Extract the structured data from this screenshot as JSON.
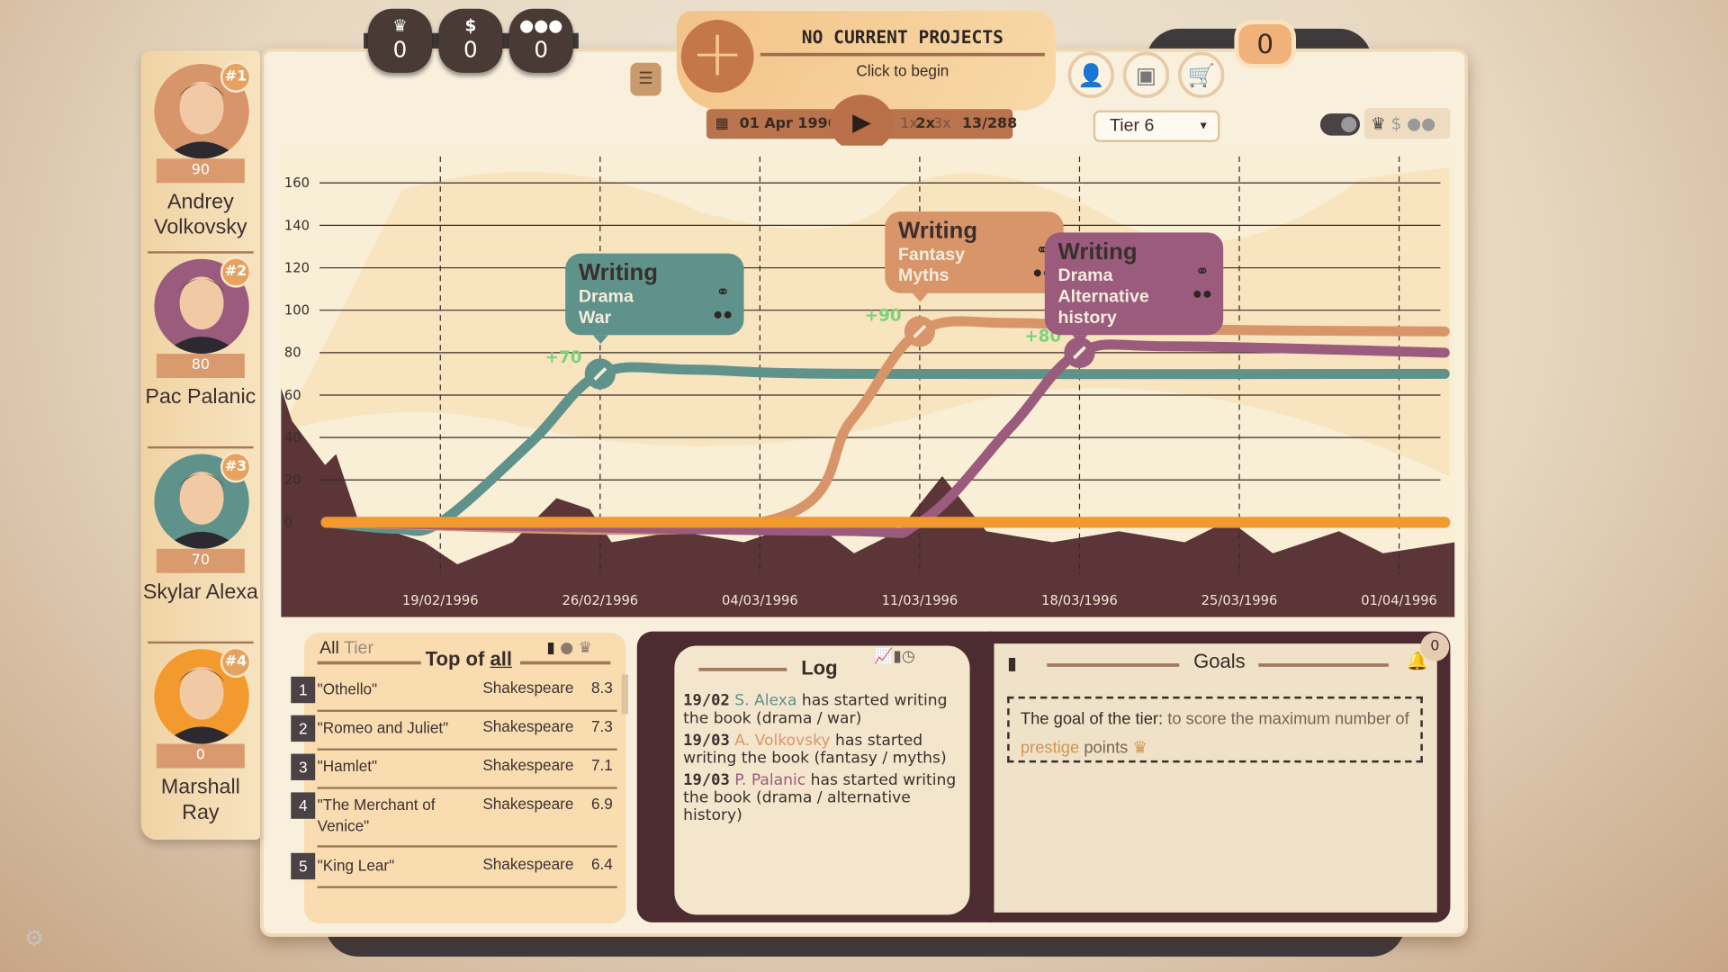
{
  "resources": [
    {
      "icon": "crown-icon",
      "glyph": "♛",
      "value": "0"
    },
    {
      "icon": "dollar-icon",
      "glyph": "$",
      "value": "0"
    },
    {
      "icon": "group-icon",
      "glyph": "👥",
      "value": "0"
    }
  ],
  "project": {
    "title": "NO CURRENT PROJECTS",
    "subtitle": "Click to begin"
  },
  "time": {
    "date": "01 Apr 1996",
    "speeds": [
      "1x",
      "2x",
      "3x"
    ],
    "active_speed": "2x",
    "progress": "13/288"
  },
  "tier_select": "Tier 6",
  "coins": "0",
  "characters": [
    {
      "rank": "#1",
      "score": "90",
      "name": "Andrey Volkovsky",
      "color": "#d9956a"
    },
    {
      "rank": "#2",
      "score": "80",
      "name": "Pac Palanic",
      "color": "#9a5b7d"
    },
    {
      "rank": "#3",
      "score": "70",
      "name": "Skylar Alexa",
      "color": "#5f928b"
    },
    {
      "rank": "#4",
      "score": "0",
      "name": "Marshall Ray",
      "color": "#f29a2e"
    }
  ],
  "chart_data": {
    "type": "line",
    "ylim": [
      0,
      160
    ],
    "yticks": [
      0,
      20,
      40,
      60,
      80,
      100,
      120,
      140,
      160
    ],
    "xlim": [
      "14/02/1996",
      "03/04/1996"
    ],
    "xticks": [
      "19/02/1996",
      "26/02/1996",
      "04/03/1996",
      "11/03/1996",
      "18/03/1996",
      "25/03/1996",
      "01/04/1996"
    ],
    "grid": true,
    "series": [
      {
        "color": "#5f928b",
        "points": [
          [
            "14/02/1996",
            0
          ],
          [
            "17/02/1996",
            -3
          ],
          [
            "19/02/1996",
            0
          ],
          [
            "23/02/1996",
            38
          ],
          [
            "26/02/1996",
            70
          ],
          [
            "01/03/1996",
            72
          ],
          [
            "08/03/1996",
            70
          ],
          [
            "03/04/1996",
            70
          ]
        ]
      },
      {
        "color": "#d9956a",
        "points": [
          [
            "14/02/1996",
            0
          ],
          [
            "04/03/1996",
            0
          ],
          [
            "08/03/1996",
            48
          ],
          [
            "11/03/1996",
            90
          ],
          [
            "15/03/1996",
            94
          ],
          [
            "22/03/1996",
            91
          ],
          [
            "03/04/1996",
            90
          ]
        ]
      },
      {
        "color": "#9a5b7d",
        "points": [
          [
            "14/02/1996",
            0
          ],
          [
            "07/03/1996",
            -4
          ],
          [
            "11/03/1996",
            0
          ],
          [
            "15/03/1996",
            45
          ],
          [
            "18/03/1996",
            80
          ],
          [
            "22/03/1996",
            83
          ],
          [
            "03/04/1996",
            80
          ]
        ]
      },
      {
        "color": "#f29a2e",
        "points": [
          [
            "14/02/1996",
            0
          ],
          [
            "03/04/1996",
            0
          ]
        ]
      }
    ],
    "events": [
      {
        "date": "26/02/1996",
        "value": 70,
        "label": "+70",
        "color": "#5f928b",
        "title": "Writing",
        "genres": [
          "Drama",
          "War"
        ]
      },
      {
        "date": "11/03/1996",
        "value": 90,
        "label": "+90",
        "color": "#d9956a",
        "title": "Writing",
        "genres": [
          "Fantasy",
          "Myths"
        ]
      },
      {
        "date": "18/03/1996",
        "value": 80,
        "label": "+80",
        "color": "#9a5b7d",
        "title": "Writing",
        "genres": [
          "Drama",
          "Alternative history"
        ]
      }
    ]
  },
  "leaderboard": {
    "tab_all": "All",
    "tab_tier": "Tier",
    "title_prefix": "Top of",
    "title_scope": "all",
    "rows": [
      {
        "rank": "1",
        "title": "\"Othello\"",
        "author": "Shakespeare",
        "score": "8.3"
      },
      {
        "rank": "2",
        "title": "\"Romeo and Juliet\"",
        "author": "Shakespeare",
        "score": "7.3"
      },
      {
        "rank": "3",
        "title": "\"Hamlet\"",
        "author": "Shakespeare",
        "score": "7.1"
      },
      {
        "rank": "4",
        "title": "\"The Merchant of Venice\"",
        "author": "Shakespeare",
        "score": "6.9"
      },
      {
        "rank": "5",
        "title": "\"King Lear\"",
        "author": "Shakespeare",
        "score": "6.4"
      }
    ]
  },
  "log": {
    "title": "Log",
    "entries": [
      {
        "date": "19/02",
        "name": "S. Alexa",
        "cls": "teal",
        "text": " has started writing the book (drama / war)"
      },
      {
        "date": "19/03",
        "name": "A. Volkovsky",
        "cls": "orng",
        "text": " has started writing the book (fantasy / myths)"
      },
      {
        "date": "19/03",
        "name": "P. Palanic",
        "cls": "purp",
        "text": " has started writing the book (drama / alternative history)"
      }
    ]
  },
  "goals": {
    "title": "Goals",
    "badge": "0",
    "lead": "The goal of the tier:",
    "text1": " to score the maximum number of ",
    "highlight": "prestige",
    "text2": " points"
  }
}
